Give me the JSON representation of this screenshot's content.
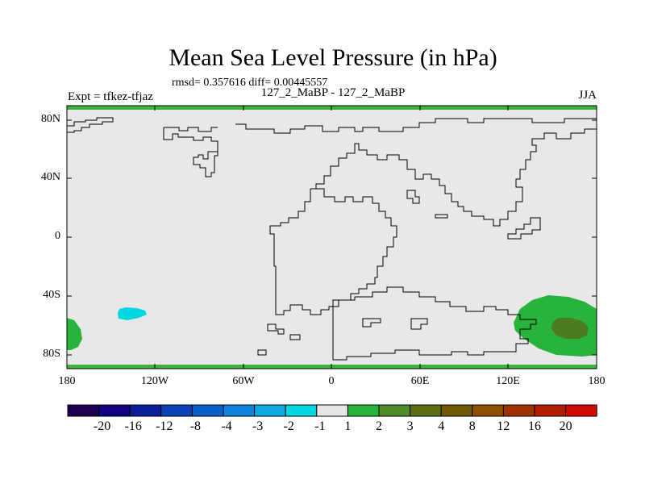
{
  "title": "Mean Sea Level Pressure (in hPa)",
  "stats": "rmsd= 0.357616 diff= 0.00445557",
  "subtitle": "127_2_MaBP - 127_2_MaBP",
  "left_label": "Expt = tfkez-tfjaz",
  "right_label": "JJA",
  "map": {
    "background_color": "#e8e8e8",
    "border_color": "#3cb43c",
    "lat_ticks": [
      "80N",
      "40N",
      "0",
      "40S",
      "80S"
    ],
    "lon_ticks": [
      "180",
      "120W",
      "60W",
      "0",
      "60E",
      "120E",
      "180"
    ],
    "anomalies": [
      {
        "label": "-2",
        "color": "#00d8e0",
        "region": "south pacific ~140W, 50S"
      },
      {
        "label": "2",
        "color": "#28b43c",
        "region": "south pacific ~180, 60S"
      },
      {
        "label": "2",
        "color": "#28b43c",
        "region": "southern ocean ~150E, 55S"
      },
      {
        "label": "3",
        "color": "#4e7b1e",
        "region": "southern ocean ~160E, 60S"
      }
    ]
  },
  "colorbar": {
    "colors": [
      "#1e0050",
      "#0f0080",
      "#0a1e9c",
      "#0a41b4",
      "#0a5fc8",
      "#0f82dc",
      "#12a8e4",
      "#00d8e0",
      "#e6e6e6",
      "#28b43c",
      "#4e8c28",
      "#5a6e14",
      "#6e5a00",
      "#8c5000",
      "#9e3200",
      "#b41e00",
      "#d20a00"
    ],
    "labels": [
      "-20",
      "-16",
      "-12",
      "-8",
      "-4",
      "-3",
      "-2",
      "-1",
      "1",
      "2",
      "3",
      "4",
      "8",
      "12",
      "16",
      "20"
    ]
  }
}
